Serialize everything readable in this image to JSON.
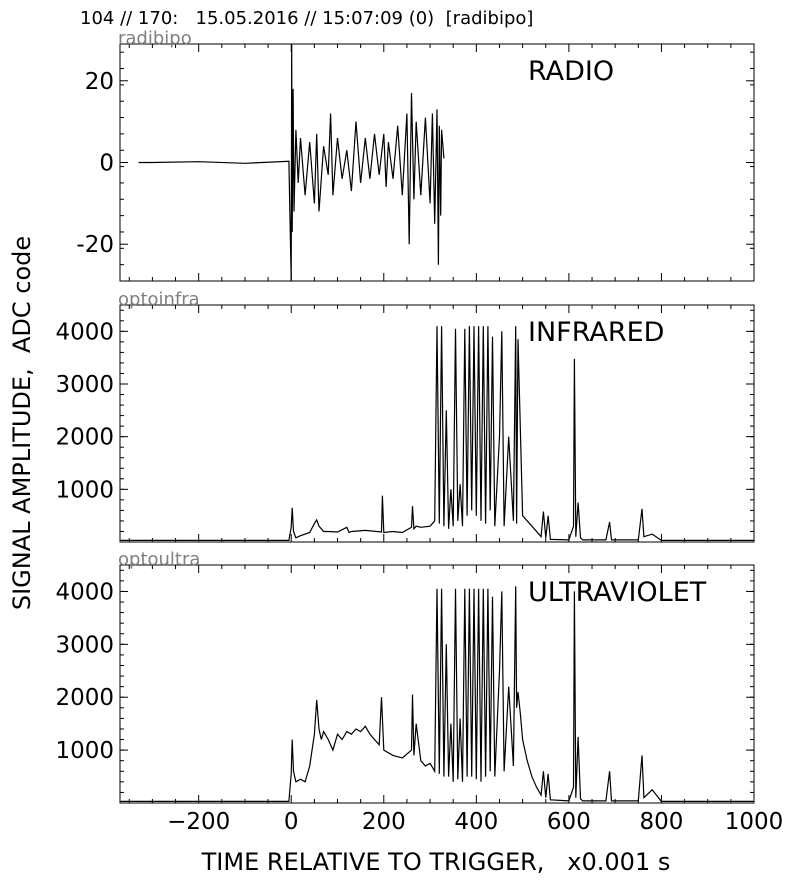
{
  "header": {
    "title": "104 // 170:   15.05.2016 // 15:07:09 (0)  [radibipo]"
  },
  "figure": {
    "ylabel": "SIGNAL AMPLITUDE,  ADC code",
    "xlabel": "TIME RELATIVE TO TRIGGER,   x0.001 s"
  },
  "chart_data": [
    {
      "type": "line",
      "channel": "radibipo",
      "title": "RADIO",
      "xlim": [
        -370,
        1000
      ],
      "ylim": [
        -29,
        29
      ],
      "yticks": [
        -20,
        0,
        20
      ],
      "ytick_labels": [
        "-20",
        "0",
        "20"
      ],
      "xticks": [
        -200,
        0,
        200,
        400,
        600,
        800,
        1000
      ],
      "show_xtick_labels": false,
      "series": [
        {
          "x": [
            -330,
            -300,
            -200,
            -100,
            -5,
            0,
            1,
            2,
            4,
            6,
            10,
            15,
            20,
            30,
            40,
            50,
            55,
            60,
            70,
            80,
            85,
            90,
            100,
            110,
            120,
            130,
            140,
            150,
            160,
            170,
            180,
            190,
            200,
            205,
            210,
            220,
            230,
            240,
            250,
            255,
            260,
            265,
            270,
            280,
            290,
            300,
            305,
            310,
            315,
            318,
            320,
            323,
            325,
            330
          ],
          "y": [
            0,
            0,
            0.2,
            -0.2,
            0.3,
            -29,
            29,
            -17,
            18,
            -12,
            8,
            -5,
            6,
            -8,
            5,
            -10,
            7,
            -12,
            4,
            -3,
            12,
            -8,
            6,
            -4,
            3,
            -7,
            10,
            -5,
            6,
            -4,
            7,
            -3,
            7,
            -6,
            5,
            -4,
            9,
            -8,
            12,
            -20,
            17,
            -9,
            10,
            -8,
            11,
            -10,
            12,
            -15,
            13,
            -25,
            9,
            -13,
            8,
            1
          ]
        }
      ]
    },
    {
      "type": "line",
      "channel": "optoinfra",
      "title": "INFRARED",
      "xlim": [
        -370,
        1000
      ],
      "ylim": [
        0,
        4500
      ],
      "yticks": [
        1000,
        2000,
        3000,
        4000
      ],
      "ytick_labels": [
        "1000",
        "2000",
        "3000",
        "4000"
      ],
      "xticks": [
        -200,
        0,
        200,
        400,
        600,
        800,
        1000
      ],
      "show_xtick_labels": false,
      "series": [
        {
          "x": [
            -370,
            -100,
            -5,
            0,
            2,
            5,
            10,
            20,
            40,
            50,
            55,
            60,
            70,
            80,
            100,
            120,
            125,
            130,
            160,
            195,
            197,
            200,
            220,
            240,
            260,
            262,
            265,
            270,
            280,
            300,
            310,
            315,
            320,
            325,
            330,
            335,
            340,
            345,
            350,
            355,
            360,
            365,
            370,
            375,
            380,
            385,
            390,
            395,
            400,
            405,
            410,
            415,
            420,
            425,
            430,
            435,
            440,
            450,
            455,
            460,
            470,
            480,
            485,
            487,
            490,
            500,
            520,
            540,
            545,
            550,
            555,
            560,
            600,
            610,
            612,
            615,
            620,
            625,
            630,
            680,
            688,
            692,
            750,
            758,
            762,
            780,
            800,
            1000
          ],
          "y": [
            30,
            30,
            30,
            280,
            650,
            200,
            80,
            120,
            180,
            350,
            420,
            300,
            200,
            200,
            190,
            280,
            180,
            200,
            220,
            190,
            880,
            180,
            200,
            180,
            280,
            680,
            250,
            300,
            280,
            300,
            400,
            4100,
            350,
            4100,
            300,
            2500,
            250,
            1000,
            300,
            4050,
            400,
            1100,
            300,
            4050,
            500,
            4100,
            600,
            4100,
            500,
            4100,
            400,
            4100,
            350,
            4100,
            600,
            3900,
            300,
            2000,
            4000,
            300,
            2000,
            400,
            4100,
            350,
            3850,
            500,
            300,
            100,
            580,
            80,
            500,
            50,
            40,
            300,
            3480,
            100,
            750,
            80,
            40,
            40,
            380,
            40,
            40,
            630,
            100,
            150,
            30,
            30
          ]
        }
      ]
    },
    {
      "type": "line",
      "channel": "optoultra",
      "title": "ULTRAVIOLET",
      "xlim": [
        -370,
        1000
      ],
      "ylim": [
        0,
        4500
      ],
      "yticks": [
        1000,
        2000,
        3000,
        4000
      ],
      "ytick_labels": [
        "1000",
        "2000",
        "3000",
        "4000"
      ],
      "xticks": [
        -200,
        0,
        200,
        400,
        600,
        800,
        1000
      ],
      "show_xtick_labels": false,
      "series": [
        {
          "x": [
            -370,
            -100,
            -5,
            0,
            2,
            5,
            10,
            20,
            30,
            40,
            50,
            55,
            60,
            65,
            70,
            80,
            90,
            100,
            110,
            120,
            130,
            140,
            150,
            160,
            170,
            180,
            190,
            195,
            200,
            210,
            220,
            240,
            260,
            262,
            265,
            270,
            280,
            290,
            300,
            310,
            315,
            320,
            325,
            330,
            335,
            340,
            345,
            350,
            355,
            360,
            365,
            370,
            375,
            380,
            385,
            390,
            395,
            400,
            405,
            410,
            415,
            420,
            425,
            430,
            435,
            440,
            450,
            455,
            460,
            470,
            480,
            485,
            487,
            490,
            495,
            500,
            510,
            520,
            530,
            540,
            545,
            550,
            555,
            560,
            600,
            610,
            612,
            615,
            620,
            625,
            630,
            680,
            688,
            692,
            750,
            758,
            762,
            780,
            800,
            1000
          ],
          "y": [
            30,
            30,
            30,
            550,
            1200,
            600,
            400,
            450,
            400,
            700,
            1300,
            1950,
            1400,
            1200,
            1350,
            1200,
            1000,
            1300,
            1200,
            1350,
            1300,
            1400,
            1350,
            1450,
            1300,
            1200,
            1100,
            2000,
            1000,
            950,
            900,
            850,
            1000,
            2050,
            900,
            1500,
            800,
            700,
            750,
            600,
            4050,
            550,
            4050,
            500,
            3000,
            500,
            1500,
            400,
            4050,
            450,
            1600,
            400,
            4050,
            500,
            4050,
            500,
            4050,
            450,
            4050,
            400,
            4050,
            500,
            4050,
            600,
            3900,
            500,
            2500,
            4000,
            600,
            2200,
            700,
            4100,
            1800,
            2100,
            1700,
            1200,
            800,
            500,
            300,
            150,
            600,
            100,
            550,
            60,
            40,
            300,
            4000,
            100,
            1250,
            80,
            40,
            40,
            600,
            40,
            40,
            900,
            100,
            250,
            30,
            30
          ]
        }
      ]
    },
    {
      "type": "axis",
      "role": "shared-x-axis",
      "xticks": [
        -200,
        0,
        200,
        400,
        600,
        800,
        1000
      ],
      "xtick_labels": [
        "−200",
        "0",
        "200",
        "400",
        "600",
        "800",
        "1000"
      ]
    }
  ]
}
